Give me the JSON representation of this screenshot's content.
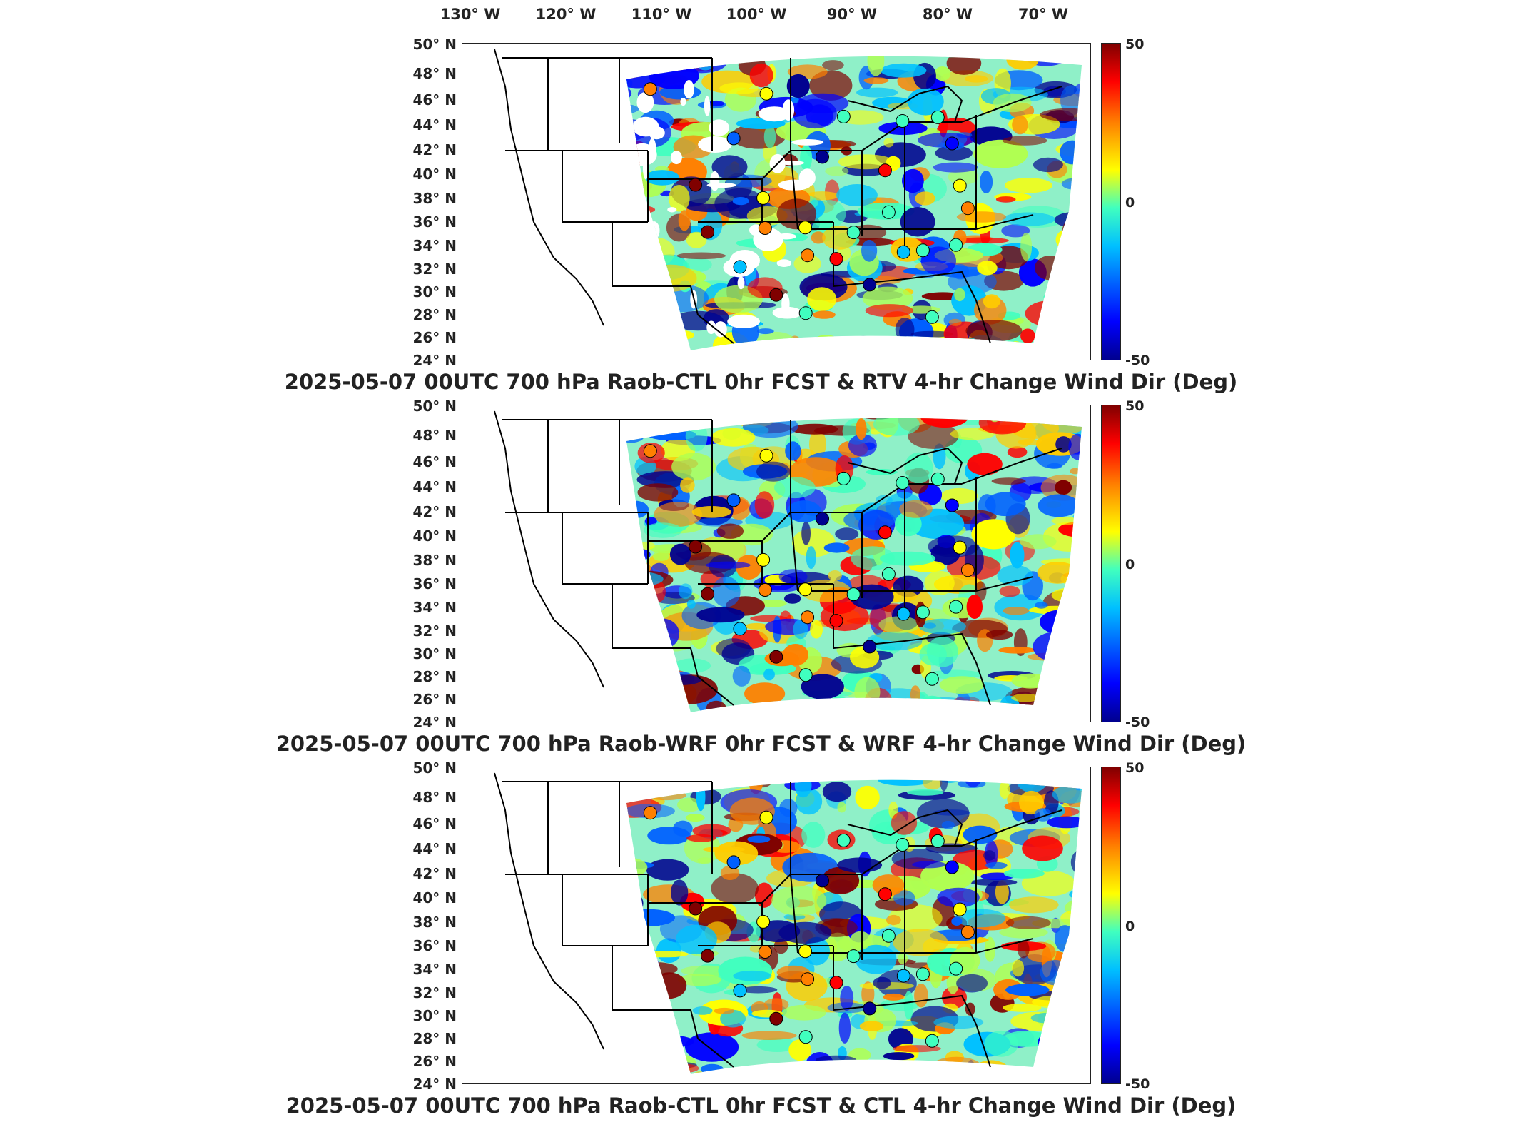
{
  "longitude_labels": [
    "130° W",
    "120° W",
    "110° W",
    "100° W",
    "90° W",
    "80° W",
    "70° W"
  ],
  "latitude_labels": [
    "50° N",
    "48° N",
    "46° N",
    "44° N",
    "42° N",
    "40° N",
    "38° N",
    "36° N",
    "34° N",
    "32° N",
    "30° N",
    "28° N",
    "26° N",
    "24° N"
  ],
  "colorbar": {
    "max_label": "50",
    "mid_label": "0",
    "min_label": "-50",
    "colors": [
      "#800000",
      "#ff0000",
      "#ff8000",
      "#ffff00",
      "#40ffbf",
      "#00c0ff",
      "#0060ff",
      "#0000ff",
      "#00008f"
    ]
  },
  "panels": [
    {
      "title": "2025-05-07 00UTC 700 hPa Raob-CTL 0hr FCST & RTV 4-hr Change Wind Dir (Deg)"
    },
    {
      "title": "2025-05-07 00UTC 700 hPa Raob-WRF 0hr FCST & WRF 4-hr Change Wind Dir (Deg)"
    },
    {
      "title": "2025-05-07 00UTC 700 hPa Raob-CTL 0hr FCST & CTL 4-hr Change Wind Dir (Deg)"
    }
  ],
  "raob_stations": [
    {
      "lon": -111.4,
      "lat": 47.5,
      "value": 20
    },
    {
      "lon": -100.8,
      "lat": 46.8,
      "value": 15
    },
    {
      "lon": -93.6,
      "lat": 44.8,
      "value": 5
    },
    {
      "lon": -84.7,
      "lat": 44.9,
      "value": 0
    },
    {
      "lon": -88.0,
      "lat": 44.5,
      "value": -5
    },
    {
      "lon": -83.0,
      "lat": 42.7,
      "value": -40
    },
    {
      "lon": -104.2,
      "lat": 43.0,
      "value": -25
    },
    {
      "lon": -95.6,
      "lat": 41.3,
      "value": -45
    },
    {
      "lon": -89.3,
      "lat": 40.2,
      "value": 40
    },
    {
      "lon": -81.6,
      "lat": 39.1,
      "value": 10
    },
    {
      "lon": -108.5,
      "lat": 39.1,
      "value": 45
    },
    {
      "lon": -101.7,
      "lat": 37.8,
      "value": 10
    },
    {
      "lon": -88.6,
      "lat": 36.6,
      "value": 5
    },
    {
      "lon": -80.4,
      "lat": 37.2,
      "value": 20
    },
    {
      "lon": -107.9,
      "lat": 35.0,
      "value": 50
    },
    {
      "lon": -101.7,
      "lat": 35.2,
      "value": 25
    },
    {
      "lon": -97.4,
      "lat": 35.2,
      "value": 15
    },
    {
      "lon": -92.2,
      "lat": 34.8,
      "value": -5
    },
    {
      "lon": -86.6,
      "lat": 33.2,
      "value": -10
    },
    {
      "lon": -84.5,
      "lat": 33.4,
      "value": -5
    },
    {
      "lon": -81.0,
      "lat": 34.0,
      "value": 5
    },
    {
      "lon": -104.8,
      "lat": 31.9,
      "value": -15
    },
    {
      "lon": -97.2,
      "lat": 32.8,
      "value": 20
    },
    {
      "lon": -94.0,
      "lat": 32.5,
      "value": 35
    },
    {
      "lon": -90.1,
      "lat": 30.3,
      "value": -50
    },
    {
      "lon": -100.9,
      "lat": 29.4,
      "value": 50
    },
    {
      "lon": -97.5,
      "lat": 27.8,
      "value": 0
    },
    {
      "lon": -82.4,
      "lat": 27.7,
      "value": 0
    }
  ]
}
